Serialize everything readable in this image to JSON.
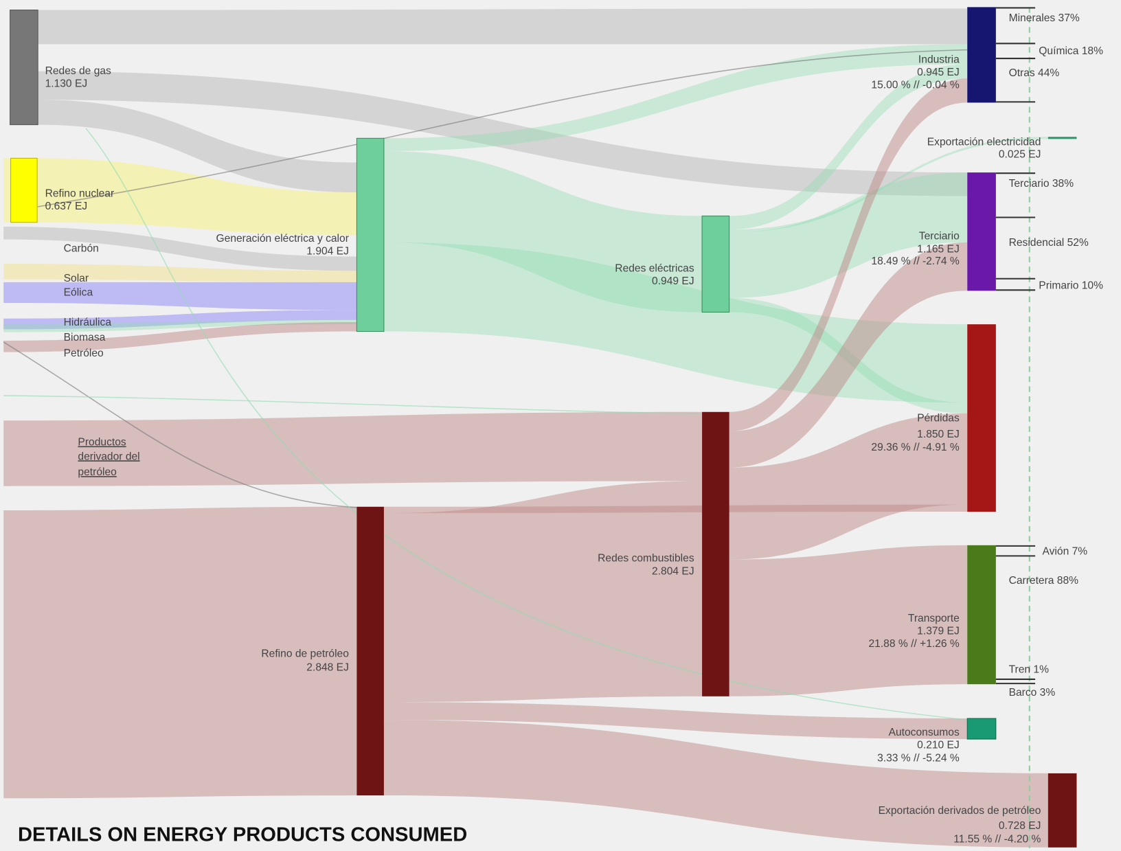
{
  "title": "DETAILS ON ENERGY PRODUCTS CONSUMED",
  "sources": [
    {
      "label": "Redes de gas",
      "value": "1.130 EJ"
    },
    {
      "label": "Refino nuclear",
      "value": "0.637 EJ"
    },
    {
      "label": "Carbón"
    },
    {
      "label": "Solar"
    },
    {
      "label": "Eólica"
    },
    {
      "label": "Hidráulica"
    },
    {
      "label": "Biomasa"
    },
    {
      "label": "Petróleo"
    },
    {
      "label": [
        "Productos",
        "derivador del",
        "petróleo"
      ]
    }
  ],
  "transforms": [
    {
      "label": "Generación eléctrica y calor",
      "value": "1.904 EJ"
    },
    {
      "label": "Refino de petróleo",
      "value": "2.848 EJ"
    },
    {
      "label": "Redes eléctricas",
      "value": "0.949 EJ"
    },
    {
      "label": "Redes combustibles",
      "value": "2.804 EJ"
    }
  ],
  "sinks": [
    {
      "label": "Industria",
      "value": "0.945 EJ",
      "share": "15.00 % // -0.04 %"
    },
    {
      "label": "Exportación electricidad",
      "value": "0.025 EJ"
    },
    {
      "label": "Terciario",
      "value": "1.165 EJ",
      "share": "18.49 % // -2.74 %"
    },
    {
      "label": "Pérdidas",
      "value": "1.850 EJ",
      "share": "29.36 % // -4.91 %"
    },
    {
      "label": "Transporte",
      "value": "1.379 EJ",
      "share": "21.88 % // +1.26 %"
    },
    {
      "label": "Autoconsumos",
      "value": "0.210 EJ",
      "share": "3.33 % // -5.24 %"
    },
    {
      "label": "Exportación derivados de petróleo",
      "value": "0.728 EJ",
      "share": "11.55 % // -4.20 %"
    }
  ],
  "breakdowns": [
    "Minerales 37%",
    "Química 18%",
    "Otras 44%",
    "Terciario 38%",
    "Residencial 52%",
    "Primario 10%",
    "Avión 7%",
    "Carretera 88%",
    "Tren 1%",
    "Barco 3%"
  ]
}
